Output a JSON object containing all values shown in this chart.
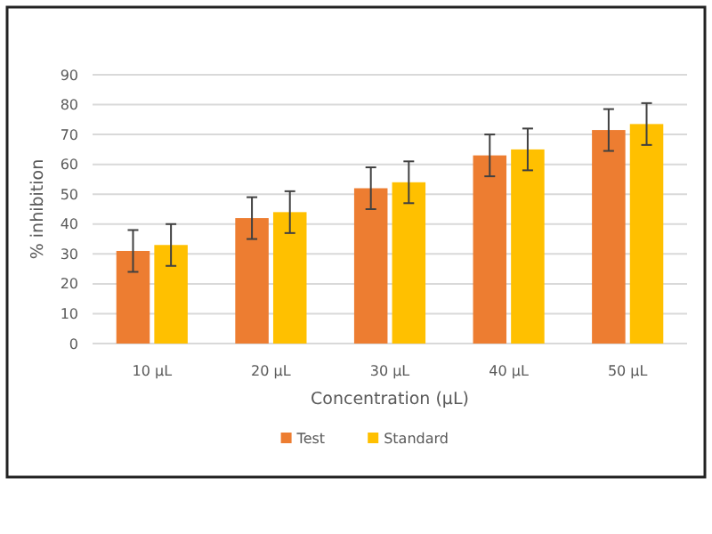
{
  "chart_data": {
    "type": "bar",
    "xlabel": "Concentration (µL)",
    "ylabel": "% inhibition",
    "categories": [
      "10 µL",
      "20 µL",
      "30 µL",
      "40 µL",
      "50 µL"
    ],
    "series": [
      {
        "name": "Test",
        "color": "#ed7d31",
        "values": [
          31,
          42,
          52,
          63,
          71.5
        ],
        "errors": [
          7,
          7,
          7,
          7,
          7
        ]
      },
      {
        "name": "Standard",
        "color": "#ffc000",
        "values": [
          33,
          44,
          54,
          65,
          73.5
        ],
        "errors": [
          7,
          7,
          7,
          7,
          7
        ]
      }
    ],
    "ylim": [
      0,
      90
    ],
    "yticks": [
      0,
      10,
      20,
      30,
      40,
      50,
      60,
      70,
      80,
      90
    ],
    "grid": "y",
    "legend": "bottom"
  }
}
